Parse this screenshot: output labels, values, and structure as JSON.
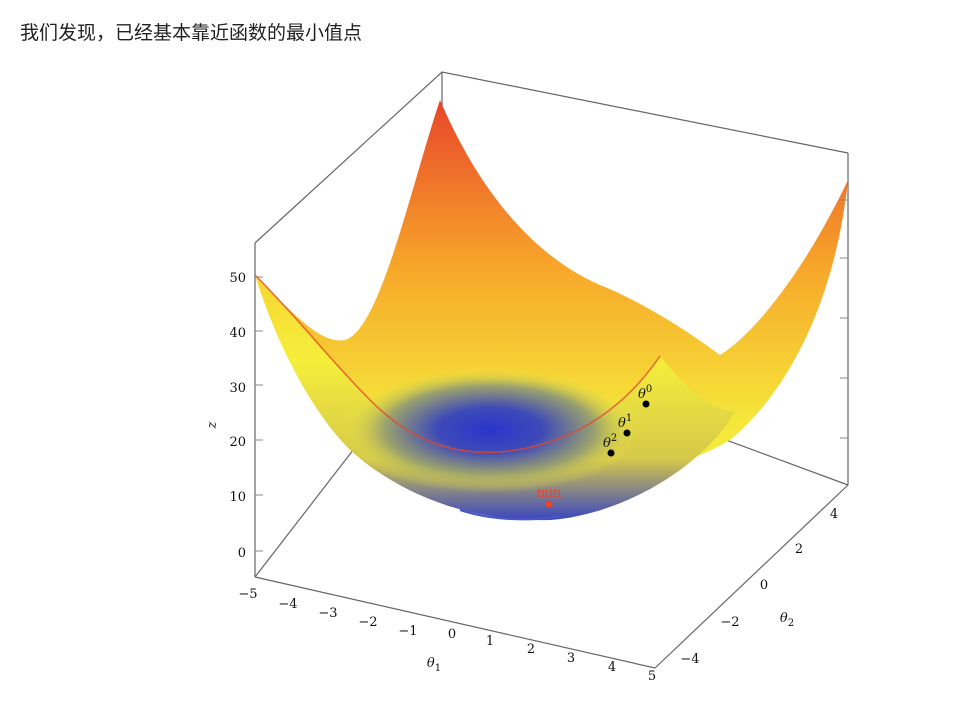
{
  "caption": "我们发现，已经基本靠近函数的最小值点",
  "chart_data": {
    "type": "surface",
    "function": "z = theta1^2 + theta2^2",
    "x_label": "θ1",
    "y_label": "θ2",
    "z_label": "z",
    "x_ticks": [
      "−5",
      "−4",
      "−3",
      "−2",
      "−1",
      "0",
      "1",
      "2",
      "3",
      "4",
      "5"
    ],
    "y_ticks": [
      "−4",
      "−2",
      "0",
      "2",
      "4"
    ],
    "z_ticks": [
      "0",
      "10",
      "20",
      "30",
      "40",
      "50"
    ],
    "x_range": [
      -5,
      5
    ],
    "y_range": [
      -5,
      5
    ],
    "z_range": [
      0,
      55
    ],
    "colormap": [
      "#2832c8",
      "#f5ee3a",
      "#f7b229",
      "#e8452a"
    ],
    "points": [
      {
        "label": "θ0",
        "base": "θ",
        "sup": "0",
        "color": "#000000"
      },
      {
        "label": "θ1",
        "base": "θ",
        "sup": "1",
        "color": "#000000"
      },
      {
        "label": "θ2",
        "base": "θ",
        "sup": "2",
        "color": "#000000"
      },
      {
        "label": "min",
        "color": "#e8452a"
      }
    ]
  }
}
